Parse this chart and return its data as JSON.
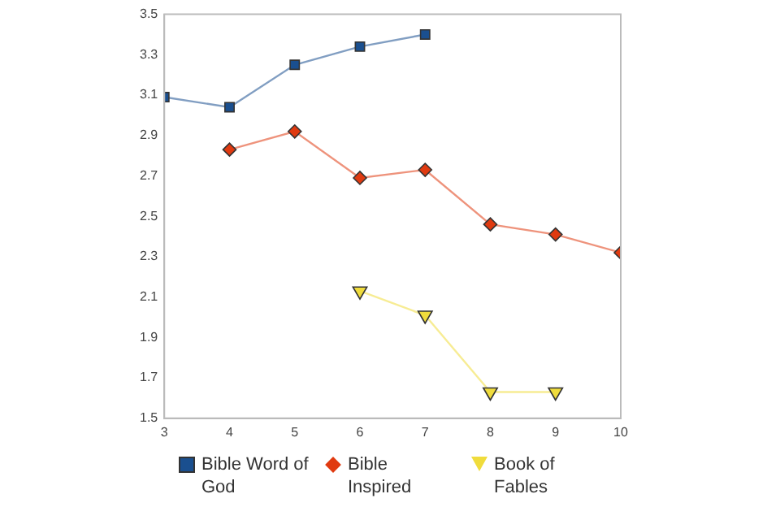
{
  "chart_data": {
    "type": "line",
    "x": [
      3,
      4,
      5,
      6,
      7,
      8,
      9,
      10
    ],
    "series": [
      {
        "name": "Bible Word of God",
        "color": "#1a4f8f",
        "marker": "square",
        "values": [
          3.09,
          3.04,
          3.25,
          3.34,
          3.4,
          null,
          null,
          null
        ]
      },
      {
        "name": "Bible Inspired",
        "color": "#e03a10",
        "marker": "diamond",
        "values": [
          null,
          2.83,
          2.92,
          2.69,
          2.73,
          2.46,
          2.41,
          2.32
        ]
      },
      {
        "name": "Book of Fables",
        "color": "#f0dc3c",
        "marker": "triangle",
        "values": [
          null,
          null,
          null,
          2.13,
          2.01,
          1.63,
          1.63,
          null
        ]
      }
    ],
    "xlim": [
      3,
      10
    ],
    "xticks": [
      3,
      4,
      5,
      6,
      7,
      8,
      9,
      10
    ],
    "ylim": [
      1.5,
      3.5
    ],
    "yticks": [
      1.5,
      1.7,
      1.9,
      2.1,
      2.3,
      2.5,
      2.7,
      2.9,
      3.1,
      3.3,
      3.5
    ],
    "grid": false,
    "legend": "bottom"
  }
}
